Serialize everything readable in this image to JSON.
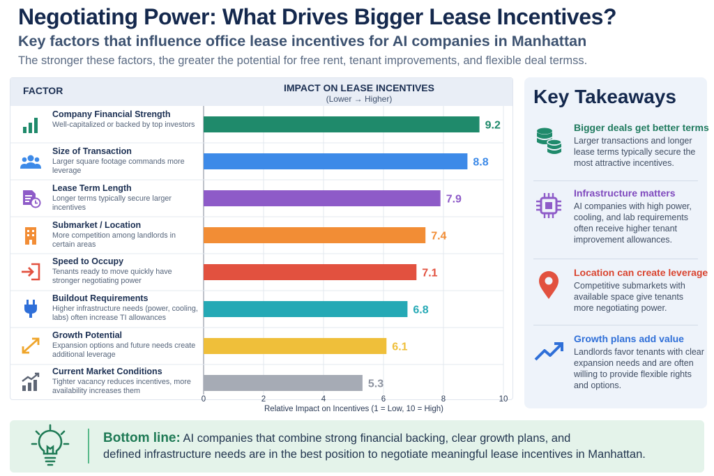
{
  "header": {
    "title": "Negotiating Power: What Drives Bigger Lease Incentives?",
    "subtitle": "Key factors that influence office lease incentives for AI companies in Manhattan",
    "description": "The stronger these factors, the greater the potential for free rent, tenant improvements, and flexible deal termss."
  },
  "chart_data": {
    "type": "bar",
    "orientation": "horizontal",
    "column_header_factor": "FACTOR",
    "title": "IMPACT ON LEASE INCENTIVES",
    "subtitle": "(Lower → Higher)",
    "xlabel": "Relative Impact on Incentives (1 = Low, 10 = High)",
    "xlim": [
      0,
      10
    ],
    "xticks": [
      "0",
      "2",
      "4",
      "6",
      "8",
      "10"
    ],
    "grid": true,
    "categories": [
      "Company Financial Strength",
      "Size of Transaction",
      "Lease Term Length",
      "Submarket / Location",
      "Speed to Occupy",
      "Buildout Requirements",
      "Growth Potential",
      "Current Market Conditions"
    ],
    "descriptions": [
      "Well-capitalized or backed by top investors",
      "Larger square footage commands more leverage",
      "Longer terms typically secure larger incentives",
      "More competition among landlords in certain areas",
      "Tenants ready to move quickly have stronger negotiating power",
      "Higher infrastructure needs (power, cooling, labs) often increase TI allowances",
      "Expansion options and future needs create additional leverage",
      "Tighter vacancy reduces incentives, more availability increases them"
    ],
    "values": [
      9.2,
      8.8,
      7.9,
      7.4,
      7.1,
      6.8,
      6.1,
      5.3
    ],
    "value_labels": [
      "9.2",
      "8.8",
      "7.9",
      "7.4",
      "7.1",
      "6.8",
      "6.1",
      "5.3"
    ],
    "colors": [
      "#1f8a6b",
      "#3d8ae8",
      "#8e5bc8",
      "#f28d35",
      "#e2513f",
      "#25a9b5",
      "#efbf3a",
      "#a6abb5"
    ],
    "icons": [
      "bar-chart-icon",
      "people-icon",
      "document-clock-icon",
      "building-icon",
      "exit-arrow-icon",
      "plug-icon",
      "expand-arrows-icon",
      "growth-chart-icon"
    ]
  },
  "takeaways": {
    "title": "Key Takeaways",
    "items": [
      {
        "heading": "Bigger deals get better terms",
        "body": "Larger transactions and longer lease terms typically secure the most attractive incentives.",
        "color": "#1f8a6b",
        "icon": "coin-stack-icon"
      },
      {
        "heading": "Infrastructure matters",
        "body": "AI companies with high power, cooling, and lab requirements often receive higher tenant improvement allowances.",
        "color": "#8e5bc8",
        "icon": "chip-icon"
      },
      {
        "heading": "Location can create leverage",
        "body": "Competitive submarkets with available space give tenants more negotiating power.",
        "color": "#e2513f",
        "icon": "map-pin-icon"
      },
      {
        "heading": "Growth plans add value",
        "body": "Landlords favor tenants with clear expansion needs and are often willing to provide flexible rights and options.",
        "color": "#2f6fd8",
        "icon": "trend-up-icon"
      }
    ]
  },
  "bottom_line": {
    "label": "Bottom line:",
    "text_line1": "AI companies that combine strong financial backing, clear growth plans, and",
    "text_line2": "defined infrastructure needs are in the best position to negotiate meaningful lease incentives in Manhattan.",
    "icon": "lightbulb-icon"
  }
}
